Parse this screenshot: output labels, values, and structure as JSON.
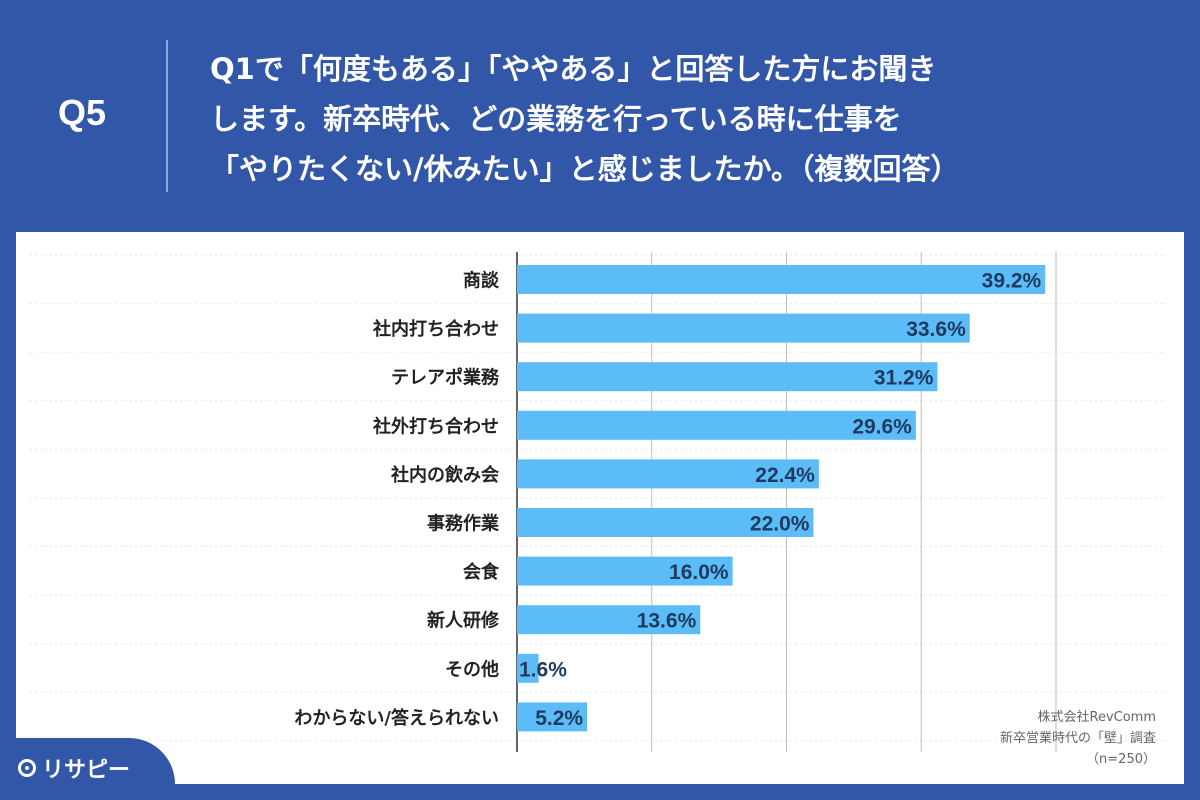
{
  "question": {
    "label": "Q5",
    "lines": [
      "Q1で「何度もある」「ややある」と回答した方にお聞き",
      "します。新卒時代、どの業務を行っている時に仕事を",
      "「やりたくない/休みたい」と感じましたか。（複数回答）"
    ]
  },
  "chart_data": {
    "type": "bar",
    "orientation": "horizontal",
    "categories": [
      "商談",
      "社内打ち合わせ",
      "テレアポ業務",
      "社外打ち合わせ",
      "社内の飲み会",
      "事務作業",
      "会食",
      "新人研修",
      "その他",
      "わからない/答えられない"
    ],
    "values": [
      39.2,
      33.6,
      31.2,
      29.6,
      22.4,
      22.0,
      16.0,
      13.6,
      1.6,
      5.2
    ],
    "value_labels": [
      "39.2%",
      "33.6%",
      "31.2%",
      "29.6%",
      "22.4%",
      "22.0%",
      "16.0%",
      "13.6%",
      "1.6%",
      "5.2%"
    ],
    "xlim": [
      0,
      40
    ],
    "grid_step": 10,
    "bar_color": "#5bbcf7",
    "label_color": "#1f3a5f"
  },
  "credit": {
    "company": "株式会社RevComm",
    "survey": "新卒営業時代の「壁」調査",
    "sample": "（n=250）"
  },
  "logo": {
    "text": "リサピー"
  }
}
